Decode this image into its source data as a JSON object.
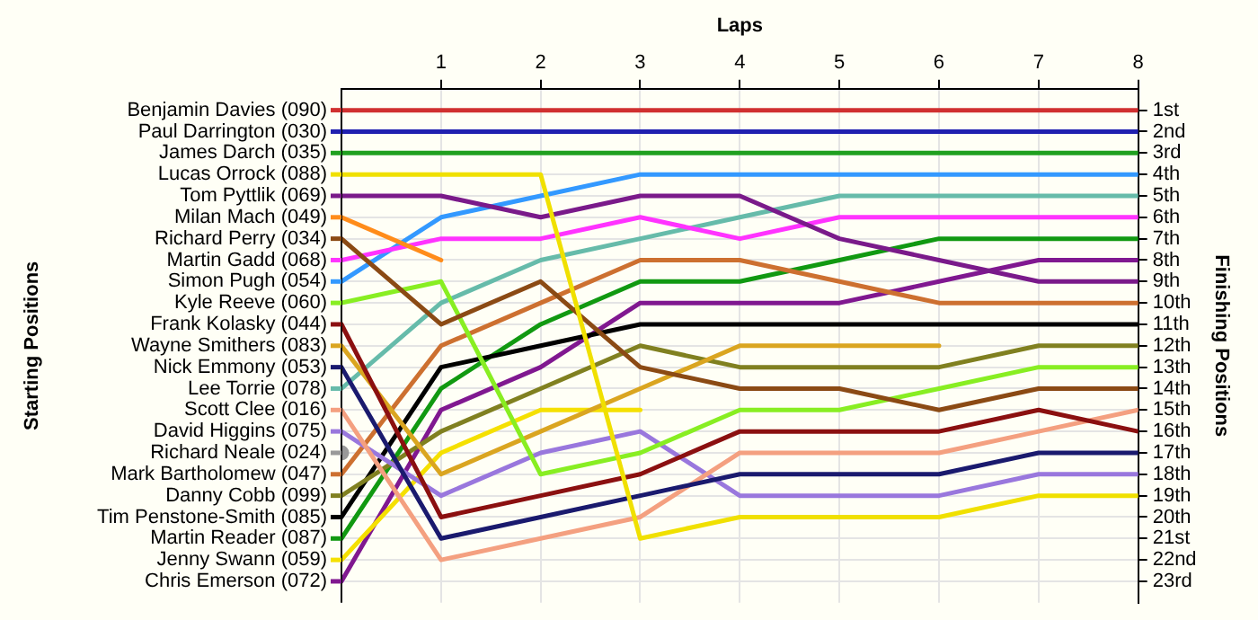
{
  "chart_data": {
    "type": "line",
    "xlabel": "Laps",
    "ylabel": "Finishing Positions",
    "annotations": [
      "Starting Positions"
    ],
    "x": [
      0,
      1,
      2,
      3,
      4,
      5,
      6,
      7,
      8
    ],
    "xlim": [
      0,
      8
    ],
    "xticks": [
      1,
      2,
      3,
      4,
      5,
      6,
      7,
      8
    ],
    "ylim": [
      24,
      0
    ],
    "yticks": [
      {
        "value": 1,
        "label": "1st"
      },
      {
        "value": 2,
        "label": "2nd"
      },
      {
        "value": 3,
        "label": "3rd"
      },
      {
        "value": 4,
        "label": "4th"
      },
      {
        "value": 5,
        "label": "5th"
      },
      {
        "value": 6,
        "label": "6th"
      },
      {
        "value": 7,
        "label": "7th"
      },
      {
        "value": 8,
        "label": "8th"
      },
      {
        "value": 9,
        "label": "9th"
      },
      {
        "value": 10,
        "label": "10th"
      },
      {
        "value": 11,
        "label": "11th"
      },
      {
        "value": 12,
        "label": "12th"
      },
      {
        "value": 13,
        "label": "13th"
      },
      {
        "value": 14,
        "label": "14th"
      },
      {
        "value": 15,
        "label": "15th"
      },
      {
        "value": 16,
        "label": "16th"
      },
      {
        "value": 17,
        "label": "17th"
      },
      {
        "value": 18,
        "label": "18th"
      },
      {
        "value": 19,
        "label": "19th"
      },
      {
        "value": 20,
        "label": "20th"
      },
      {
        "value": 21,
        "label": "21st"
      },
      {
        "value": 22,
        "label": "22nd"
      },
      {
        "value": 23,
        "label": "23rd"
      }
    ],
    "grid": true,
    "legend": "left",
    "marker": "none",
    "series": [
      {
        "name": "Benjamin Davies (090)",
        "color": "#d03030",
        "values": [
          1,
          1,
          1,
          1,
          1,
          1,
          1,
          1,
          1
        ]
      },
      {
        "name": "Paul Darrington (030)",
        "color": "#2020b0",
        "values": [
          2,
          2,
          2,
          2,
          2,
          2,
          2,
          2,
          2
        ]
      },
      {
        "name": "James Darch (035)",
        "color": "#20a020",
        "values": [
          3,
          3,
          3,
          3,
          3,
          3,
          3,
          3,
          3
        ]
      },
      {
        "name": "Lucas Orrock (088)",
        "color": "#f0e000",
        "values": [
          4,
          4,
          4,
          21,
          20,
          20,
          20,
          19,
          19
        ]
      },
      {
        "name": "Tom Pyttlik (069)",
        "color": "#7a1a8a",
        "values": [
          5,
          5,
          6,
          5,
          5,
          7,
          8,
          9,
          9
        ]
      },
      {
        "name": "Milan Mach (049)",
        "color": "#ff8c1a",
        "values": [
          6,
          8,
          null,
          null,
          null,
          null,
          null,
          null,
          null
        ]
      },
      {
        "name": "Richard Perry (034)",
        "color": "#8b4a14",
        "values": [
          7,
          11,
          9,
          13,
          14,
          14,
          15,
          14,
          14
        ]
      },
      {
        "name": "Martin Gadd (068)",
        "color": "#ff33ff",
        "values": [
          8,
          7,
          7,
          6,
          7,
          6,
          6,
          6,
          6
        ]
      },
      {
        "name": "Simon Pugh (054)",
        "color": "#3399ff",
        "values": [
          9,
          6,
          5,
          4,
          4,
          4,
          4,
          4,
          4
        ]
      },
      {
        "name": "Kyle Reeve (060)",
        "color": "#88ee22",
        "values": [
          10,
          9,
          18,
          17,
          15,
          15,
          14,
          13,
          13
        ]
      },
      {
        "name": "Frank Kolasky (044)",
        "color": "#8b1010",
        "values": [
          11,
          20,
          19,
          18,
          16,
          16,
          16,
          15,
          16
        ]
      },
      {
        "name": "Wayne Smithers (083)",
        "color": "#daa520",
        "values": [
          12,
          18,
          16,
          14,
          12,
          12,
          12,
          null,
          null
        ]
      },
      {
        "name": "Nick Emmony (053)",
        "color": "#1a1a6e",
        "values": [
          13,
          21,
          20,
          19,
          18,
          18,
          18,
          17,
          17
        ]
      },
      {
        "name": "Lee Torrie (078)",
        "color": "#66bbaa",
        "values": [
          14,
          10,
          8,
          7,
          6,
          5,
          5,
          5,
          5
        ]
      },
      {
        "name": "Scott Clee (016)",
        "color": "#f4a080",
        "values": [
          15,
          22,
          21,
          20,
          17,
          17,
          17,
          16,
          15
        ]
      },
      {
        "name": "David Higgins (075)",
        "color": "#9977dd",
        "values": [
          16,
          19,
          17,
          16,
          19,
          19,
          19,
          18,
          18
        ]
      },
      {
        "name": "Richard Neale (024)",
        "color": "#999999",
        "marker": "circle",
        "values": [
          17,
          null,
          null,
          null,
          null,
          null,
          null,
          null,
          null
        ]
      },
      {
        "name": "Mark Bartholomew (047)",
        "color": "#cd7030",
        "values": [
          18,
          12,
          10,
          8,
          8,
          9,
          10,
          10,
          10
        ]
      },
      {
        "name": "Danny Cobb (099)",
        "color": "#808020",
        "values": [
          19,
          16,
          14,
          12,
          13,
          13,
          13,
          12,
          12
        ]
      },
      {
        "name": "Tim Penstone-Smith (085)",
        "color": "#000000",
        "values": [
          20,
          13,
          12,
          11,
          11,
          11,
          11,
          11,
          11
        ]
      },
      {
        "name": "Martin Reader (087)",
        "color": "#119911",
        "values": [
          21,
          14,
          11,
          9,
          9,
          8,
          7,
          7,
          7
        ]
      },
      {
        "name": "Jenny Swann (059)",
        "color": "#f5e000",
        "values": [
          22,
          17,
          15,
          15,
          null,
          null,
          null,
          null,
          null
        ]
      },
      {
        "name": "Chris Emerson (072)",
        "color": "#801890",
        "values": [
          23,
          15,
          13,
          10,
          10,
          10,
          9,
          8,
          8
        ]
      }
    ]
  }
}
